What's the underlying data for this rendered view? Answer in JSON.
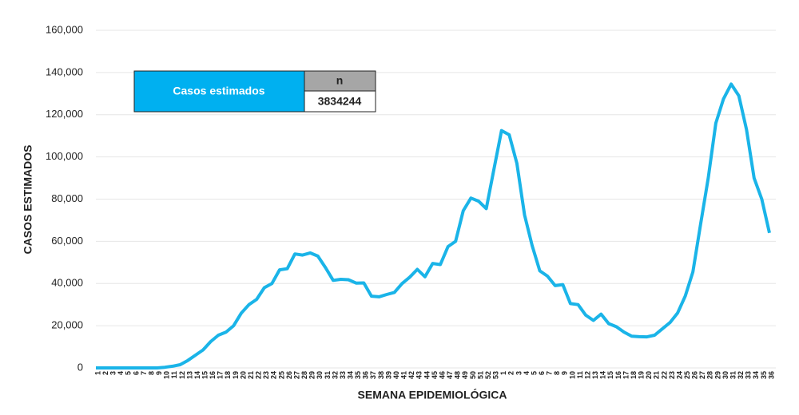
{
  "chart_data": {
    "type": "line",
    "y_label": "CASOS ESTIMADOS",
    "x_label": "SEMANA EPIDEMIOLÓGICA",
    "categories": [
      "1",
      "2",
      "3",
      "4",
      "5",
      "6",
      "7",
      "8",
      "9",
      "10",
      "11",
      "12",
      "13",
      "14",
      "15",
      "16",
      "17",
      "18",
      "19",
      "20",
      "21",
      "22",
      "23",
      "24",
      "25",
      "26",
      "27",
      "28",
      "29",
      "30",
      "31",
      "32",
      "33",
      "34",
      "35",
      "36",
      "37",
      "38",
      "39",
      "40",
      "41",
      "42",
      "43",
      "44",
      "45",
      "46",
      "47",
      "48",
      "49",
      "50",
      "51",
      "52",
      "53",
      "1",
      "2",
      "3",
      "4",
      "5",
      "6",
      "7",
      "8",
      "9",
      "10",
      "11",
      "12",
      "13",
      "14",
      "15",
      "16",
      "17",
      "18",
      "19",
      "20",
      "21",
      "22",
      "23",
      "24",
      "25",
      "26",
      "27",
      "28",
      "29",
      "30",
      "31",
      "32",
      "33",
      "34",
      "35",
      "36"
    ],
    "values": [
      0,
      0,
      0,
      0,
      0,
      0,
      0,
      0,
      0,
      300,
      800,
      1500,
      3500,
      6000,
      8500,
      12500,
      15500,
      17000,
      20000,
      26000,
      30000,
      32500,
      38000,
      40000,
      46500,
      47000,
      54000,
      53500,
      54500,
      53000,
      47500,
      41500,
      42000,
      41800,
      40200,
      40300,
      34000,
      33700,
      34800,
      35800,
      40000,
      43000,
      46700,
      43200,
      49500,
      49000,
      57500,
      60000,
      74500,
      80500,
      79000,
      75500,
      94000,
      112500,
      110500,
      97000,
      72500,
      58000,
      46000,
      43500,
      39000,
      39500,
      30500,
      30000,
      25000,
      22500,
      25500,
      21000,
      19500,
      17000,
      15000,
      14800,
      14700,
      15500,
      18500,
      21500,
      26000,
      34000,
      45500,
      68000,
      90000,
      116000,
      127500,
      134500,
      129000,
      113000,
      90000,
      80000,
      64000
    ],
    "color": "#1ab4e8",
    "ylim": [
      0,
      160000
    ],
    "yticks": [
      0,
      {
        "value": 20000,
        "label": "20,000"
      },
      {
        "value": 40000,
        "label": "40,000"
      },
      {
        "value": 60000,
        "label": "60,000"
      },
      {
        "value": 80000,
        "label": "80,000"
      },
      {
        "value": 100000,
        "label": "100,000"
      },
      {
        "value": 120000,
        "label": "120,000"
      },
      {
        "value": 140000,
        "label": "140,000"
      },
      {
        "value": 160000,
        "label": "160,000"
      }
    ],
    "grid": true,
    "summary_box": {
      "label": "Casos estimados",
      "column": "n",
      "value": 3834244
    }
  }
}
